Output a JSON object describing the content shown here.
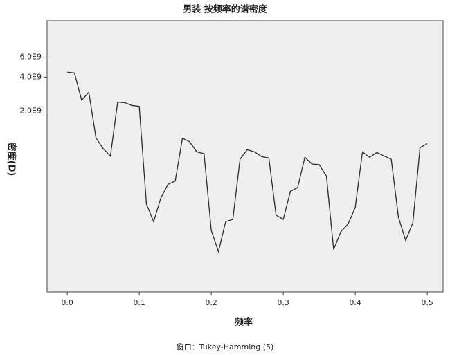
{
  "chart_data": {
    "type": "line",
    "title": "男装 按频率的谱密度",
    "x_label": "频率",
    "y_label": "密度(D)",
    "caption": "窗口：Tukey-Hamming (5)",
    "x": [
      0,
      0.01,
      0.02,
      0.03,
      0.04,
      0.05,
      0.06,
      0.07,
      0.08,
      0.09,
      0.1,
      0.11,
      0.12,
      0.13,
      0.14,
      0.15,
      0.16,
      0.17,
      0.18,
      0.19,
      0.2,
      0.21,
      0.22,
      0.23,
      0.24,
      0.25,
      0.26,
      0.27,
      0.28,
      0.29,
      0.3,
      0.31,
      0.32,
      0.33,
      0.34,
      0.35,
      0.36,
      0.37,
      0.38,
      0.39,
      0.4,
      0.41,
      0.42,
      0.43,
      0.44,
      0.45,
      0.46,
      0.47,
      0.48,
      0.49,
      0.5
    ],
    "values": [
      4420000000,
      4350000000,
      2500000000,
      2930000000,
      1150000000,
      930000000,
      800000000,
      2400000000,
      2370000000,
      2240000000,
      2200000000,
      300000000,
      210000000,
      340000000,
      450000000,
      480000000,
      1150000000,
      1070000000,
      870000000,
      840000000,
      176000000,
      114000000,
      210000000,
      220000000,
      750000000,
      910000000,
      870000000,
      790000000,
      770000000,
      240000000,
      220000000,
      390000000,
      420000000,
      780000000,
      680000000,
      670000000,
      530000000,
      119000000,
      171000000,
      200000000,
      280000000,
      870000000,
      780000000,
      860000000,
      800000000,
      750000000,
      230000000,
      143000000,
      205000000,
      950000000,
      1030000000
    ],
    "color": "#2a2a2a",
    "yscale": "log",
    "xlim": [
      -0.028,
      0.522
    ],
    "ylim": [
      50000000,
      12600000000
    ],
    "xticks": [
      {
        "value": 0,
        "label": "0.0"
      },
      0.1,
      0.2,
      0.3,
      0.4,
      0.5
    ],
    "yticks": [
      {
        "value": 2000000000,
        "label": "2.0E9"
      },
      {
        "value": 4000000000,
        "label": "4.0E9"
      },
      {
        "value": 6000000000,
        "label": "6.0E9"
      }
    ]
  }
}
